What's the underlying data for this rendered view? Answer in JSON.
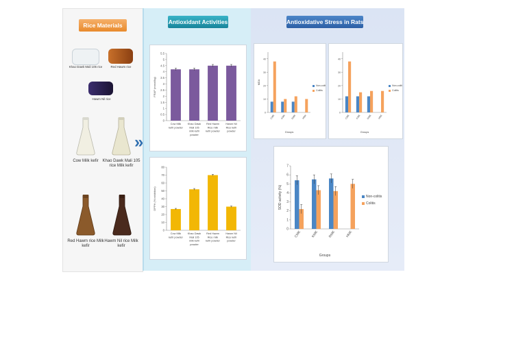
{
  "left": {
    "title": "Rice Materials",
    "rice_samples": [
      {
        "label": "Khao Dawk Mali 105 rice",
        "color": "#eef2f4"
      },
      {
        "label": "Red Hawm rice",
        "color": "#a4561e"
      },
      {
        "label": "Hawm Nil rice",
        "color": "#2a1f4e"
      }
    ],
    "kefirs": [
      {
        "label": "Cow Milk kefir",
        "color": "#f1efe2"
      },
      {
        "label": "Khao Dawk Mali 105 rice Milk kefir",
        "color": "#e9e6cf"
      },
      {
        "label": "Red Hawm rice Milk kefir",
        "color": "#8b5a2b"
      },
      {
        "label": "Hawm Nil rice Milk kefir",
        "color": "#4a2a1d"
      }
    ]
  },
  "middle": {
    "title": "Antioxidant Activities",
    "arrow_glyph": "»"
  },
  "right": {
    "title": "Antioxidative Stress in Rats"
  },
  "colors": {
    "purple": "#7b5a9d",
    "yellow": "#f2b705",
    "blue": "#4a86c5",
    "orange": "#f5a25d"
  },
  "chart_data": [
    {
      "type": "bar",
      "title": "",
      "ylabel": "FRAP (mmol/kg)",
      "xlabel": "",
      "categories": [
        "Cow Milk kefir powder",
        "Khao Dawk Mali 105 milk kefir powder",
        "Red Hawm Rice milk kefir powder",
        "Hawm Nil Rice kefir powder"
      ],
      "values": [
        4.2,
        4.2,
        4.5,
        4.5
      ],
      "errors": [
        0.1,
        0.1,
        0.1,
        0.1
      ],
      "yticks": [
        "0",
        "0.5",
        "1",
        "1.5",
        "2",
        "2.5",
        "3",
        "3.5",
        "4",
        "4.5",
        "5",
        "5.5"
      ],
      "ylim": [
        0,
        5.5
      ],
      "color": "#7b5a9d"
    },
    {
      "type": "bar",
      "title": "",
      "ylabel": "DPPH (% inhibition)",
      "xlabel": "",
      "categories": [
        "Cow Milk kefir powder",
        "Khao Dawk Mali 105 milk kefir powder",
        "Red Hawm Rice milk kefir powder",
        "Hawm Nil Rice kefir powder"
      ],
      "values": [
        27,
        52,
        70,
        30
      ],
      "errors": [
        0.8,
        1.0,
        1.0,
        0.8
      ],
      "yticks": [
        "0",
        "10",
        "20",
        "30",
        "40",
        "50",
        "60",
        "70",
        "80"
      ],
      "ylim": [
        0,
        80
      ],
      "color": "#f2b705"
    },
    {
      "type": "bar",
      "title": "",
      "ylabel": "MDA",
      "xlabel": "Groups",
      "categories": [
        "CMK",
        "KMK",
        "RMK",
        "HNK"
      ],
      "series": [
        {
          "name": "Non-colitis",
          "values": [
            8,
            8,
            8,
            null
          ],
          "color": "#4a86c5"
        },
        {
          "name": "Colitis",
          "values": [
            38,
            10,
            12,
            10
          ],
          "color": "#f5a25d"
        }
      ],
      "yticks": [
        "0",
        "10",
        "20",
        "30",
        "40"
      ],
      "ylim": [
        0,
        45
      ],
      "legend": "right"
    },
    {
      "type": "bar",
      "title": "",
      "ylabel": "",
      "xlabel": "Groups",
      "categories": [
        "CMK",
        "KMK",
        "RMK",
        "HNK"
      ],
      "series": [
        {
          "name": "Non-colitis",
          "values": [
            12,
            12,
            12,
            null
          ],
          "color": "#4a86c5"
        },
        {
          "name": "Colitis",
          "values": [
            38,
            15,
            16,
            16
          ],
          "color": "#f5a25d"
        }
      ],
      "yticks": [
        "0",
        "10",
        "20",
        "30",
        "40"
      ],
      "ylim": [
        0,
        45
      ],
      "legend": "right"
    },
    {
      "type": "bar",
      "title": "",
      "ylabel": "SOD activity (%)",
      "xlabel": "Groups",
      "categories": [
        "CMK",
        "KMK",
        "RMK",
        "HNK"
      ],
      "series": [
        {
          "name": "Non-colitis",
          "values": [
            5.4,
            5.5,
            5.6,
            null
          ],
          "errors": [
            0.5,
            0.5,
            0.5,
            null
          ],
          "color": "#4a86c5"
        },
        {
          "name": "Colitis",
          "values": [
            2.2,
            4.3,
            4.2,
            5.0
          ],
          "errors": [
            0.5,
            0.5,
            0.5,
            0.5
          ],
          "color": "#f5a25d"
        }
      ],
      "yticks": [
        "0",
        "1",
        "2",
        "3",
        "4",
        "5",
        "6",
        "7"
      ],
      "ylim": [
        0,
        7
      ],
      "legend": "right"
    }
  ]
}
